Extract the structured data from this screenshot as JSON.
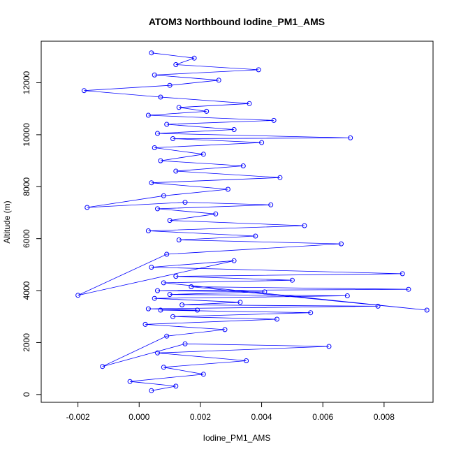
{
  "chart_data": {
    "type": "scatter",
    "title": "ATOM3 Northbound Iodine_PM1_AMS",
    "xlabel": "Iodine_PM1_AMS",
    "ylabel": "Altitude (m)",
    "xlim": [
      -0.0032,
      0.0096
    ],
    "ylim": [
      -300,
      13600
    ],
    "x_ticks": [
      -0.002,
      0.0,
      0.002,
      0.004,
      0.006,
      0.008
    ],
    "x_tick_labels": [
      "-0.002",
      "0.000",
      "0.002",
      "0.004",
      "0.006",
      "0.008"
    ],
    "y_ticks": [
      0,
      2000,
      4000,
      6000,
      8000,
      10000,
      12000
    ],
    "y_tick_labels": [
      "0",
      "2000",
      "4000",
      "6000",
      "8000",
      "10000",
      "12000"
    ],
    "grid": false,
    "legend": "none",
    "marker": "open-circle",
    "connected": true,
    "color": "#0000ff",
    "series": [
      {
        "x": [
          0.0004,
          0.0012,
          -0.0003,
          0.0021,
          0.0008,
          0.0035,
          0.0006,
          0.0062,
          0.0015,
          -0.0012,
          0.0009,
          0.0028,
          0.0002,
          0.0045,
          0.0011,
          0.0056,
          0.0007,
          0.0019,
          0.0003,
          0.0078,
          0.0014,
          0.0033,
          0.0005,
          0.0068,
          0.001,
          0.0041,
          0.0006,
          0.0088,
          0.0017,
          0.0094,
          0.0008,
          0.005,
          0.0012,
          0.0086,
          0.0004,
          0.0031,
          -0.002,
          0.0009,
          0.0066,
          0.0013,
          0.0038,
          0.0003,
          0.0054,
          0.001,
          0.0025,
          0.0006,
          0.0043,
          0.0015,
          -0.0017,
          0.0008,
          0.0029,
          0.0004,
          0.0046,
          0.0012,
          0.0034,
          0.0007,
          0.0021,
          0.0005,
          0.004,
          0.0011,
          0.0069,
          0.0006,
          0.0031,
          0.0009,
          0.0044,
          0.0003,
          0.0022,
          0.0013,
          0.0036,
          0.0007,
          -0.0018,
          0.001,
          0.0026,
          0.0005,
          0.0039,
          0.0012,
          0.0018,
          0.0004
        ],
        "y": [
          150,
          320,
          500,
          780,
          1050,
          1300,
          1600,
          1850,
          1950,
          1080,
          2250,
          2500,
          2700,
          2900,
          3000,
          3150,
          3250,
          3250,
          3300,
          3400,
          3450,
          3550,
          3700,
          3800,
          3850,
          3950,
          4000,
          4050,
          4150,
          3250,
          4300,
          4400,
          4550,
          4650,
          4900,
          5150,
          3820,
          5400,
          5800,
          5950,
          6100,
          6300,
          6500,
          6700,
          6950,
          7150,
          7300,
          7400,
          7200,
          7650,
          7900,
          8150,
          8350,
          8600,
          8800,
          9000,
          9250,
          9500,
          9700,
          9850,
          9880,
          10050,
          10200,
          10400,
          10550,
          10750,
          10900,
          11050,
          11200,
          11450,
          11700,
          11900,
          12100,
          12300,
          12500,
          12700,
          12950,
          13150
        ]
      }
    ]
  }
}
